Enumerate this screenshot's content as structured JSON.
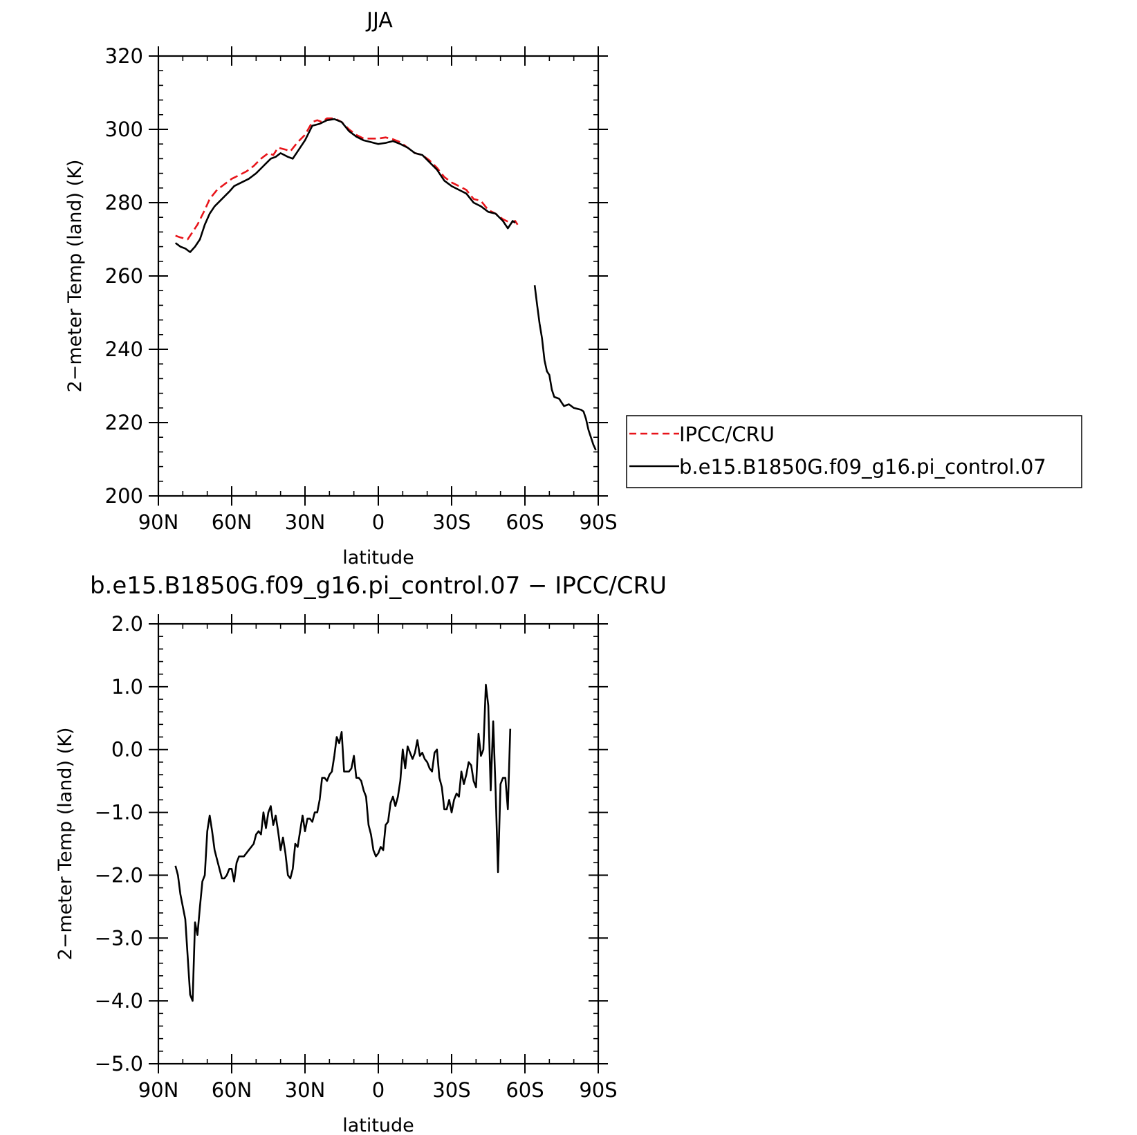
{
  "chart_data": [
    {
      "type": "line",
      "title": "JJA",
      "xlabel": "latitude",
      "ylabel": "2−meter Temp (land) (K)",
      "xlim": [
        90,
        -90
      ],
      "ylim": [
        200,
        320
      ],
      "x_ticks": [
        90,
        60,
        30,
        0,
        -30,
        -60,
        -90
      ],
      "x_tick_labels": [
        "90N",
        "60N",
        "30N",
        "0",
        "30S",
        "60S",
        "90S"
      ],
      "y_ticks": [
        200,
        220,
        240,
        260,
        280,
        300,
        320
      ],
      "y_tick_labels": [
        "200",
        "220",
        "240",
        "260",
        "280",
        "300",
        "320"
      ],
      "grid": false,
      "legend_position": "right",
      "series": [
        {
          "name": "IPCC/CRU",
          "color": "#e8141a",
          "dash": "dashed",
          "points": [
            [
              83,
              271
            ],
            [
              81,
              270.5
            ],
            [
              78,
              270
            ],
            [
              76,
              272
            ],
            [
              74,
              274
            ],
            [
              71,
              278
            ],
            [
              69,
              281
            ],
            [
              66,
              283.5
            ],
            [
              63,
              285
            ],
            [
              60,
              286.5
            ],
            [
              57,
              287.5
            ],
            [
              54,
              288.5
            ],
            [
              51,
              290
            ],
            [
              48,
              292
            ],
            [
              45,
              293.5
            ],
            [
              43,
              293
            ],
            [
              41,
              295
            ],
            [
              38,
              294.5
            ],
            [
              36,
              294
            ],
            [
              33,
              296.5
            ],
            [
              30,
              298.5
            ],
            [
              27,
              302
            ],
            [
              25,
              302.5
            ],
            [
              23,
              302
            ],
            [
              21,
              303
            ],
            [
              18,
              303
            ],
            [
              15,
              302
            ],
            [
              12,
              300
            ],
            [
              9,
              298.5
            ],
            [
              6,
              297.5
            ],
            [
              3,
              297.5
            ],
            [
              0,
              297.5
            ],
            [
              -3,
              297.8
            ],
            [
              -6,
              297.3
            ],
            [
              -9,
              296.5
            ],
            [
              -12,
              295
            ],
            [
              -15,
              293.5
            ],
            [
              -18,
              293
            ],
            [
              -21,
              291.5
            ],
            [
              -24,
              289.5
            ],
            [
              -27,
              287
            ],
            [
              -30,
              285.5
            ],
            [
              -33,
              284.5
            ],
            [
              -36,
              283.5
            ],
            [
              -39,
              281
            ],
            [
              -42,
              280.5
            ],
            [
              -45,
              278
            ],
            [
              -48,
              277
            ],
            [
              -51,
              275.5
            ],
            [
              -54,
              274.5
            ],
            [
              -56,
              275
            ],
            [
              -57,
              274
            ]
          ]
        },
        {
          "name": "b.e15.B1850G.f09_g16.pi_control.07",
          "color": "#000000",
          "dash": "solid",
          "points": [
            [
              83,
              269
            ],
            [
              81,
              268
            ],
            [
              79,
              267.5
            ],
            [
              77,
              266.5
            ],
            [
              75,
              268
            ],
            [
              73,
              270
            ],
            [
              71,
              274
            ],
            [
              69,
              277
            ],
            [
              67,
              279
            ],
            [
              64,
              281
            ],
            [
              61,
              283
            ],
            [
              59,
              284.5
            ],
            [
              56,
              285.5
            ],
            [
              53,
              286.5
            ],
            [
              50,
              288
            ],
            [
              47,
              290
            ],
            [
              44,
              292
            ],
            [
              42,
              292.5
            ],
            [
              40,
              293.5
            ],
            [
              37,
              292.5
            ],
            [
              35,
              292
            ],
            [
              33,
              294
            ],
            [
              30,
              297
            ],
            [
              27,
              301
            ],
            [
              24,
              301.5
            ],
            [
              21,
              302.5
            ],
            [
              18,
              302.8
            ],
            [
              15,
              302
            ],
            [
              12,
              299.5
            ],
            [
              9,
              298
            ],
            [
              6,
              297
            ],
            [
              3,
              296.5
            ],
            [
              0,
              296
            ],
            [
              -3,
              296.3
            ],
            [
              -6,
              296.8
            ],
            [
              -9,
              296
            ],
            [
              -12,
              295
            ],
            [
              -15,
              293.5
            ],
            [
              -18,
              293
            ],
            [
              -21,
              291
            ],
            [
              -24,
              289
            ],
            [
              -27,
              286
            ],
            [
              -30,
              284.5
            ],
            [
              -33,
              283.5
            ],
            [
              -36,
              282.5
            ],
            [
              -39,
              280
            ],
            [
              -42,
              279
            ],
            [
              -45,
              277.5
            ],
            [
              -48,
              277
            ],
            [
              -51,
              275
            ],
            [
              -53,
              273
            ],
            [
              -55,
              275
            ],
            [
              -56,
              274.5
            ]
          ]
        },
        {
          "name": "b.e15.B1850G.f09_g16.pi_control.07",
          "color": "#000000",
          "dash": "solid",
          "points": [
            [
              -64,
              257.5
            ],
            [
              -65,
              252
            ],
            [
              -66,
              247
            ],
            [
              -67,
              243
            ],
            [
              -68,
              237
            ],
            [
              -69,
              234
            ],
            [
              -70,
              233
            ],
            [
              -71,
              229
            ],
            [
              -72,
              227
            ],
            [
              -74,
              226.5
            ],
            [
              -75,
              225.5
            ],
            [
              -76,
              224.5
            ],
            [
              -78,
              225
            ],
            [
              -80,
              224
            ],
            [
              -83,
              223.5
            ],
            [
              -84,
              223
            ],
            [
              -85,
              221
            ],
            [
              -86,
              218
            ],
            [
              -88,
              214
            ],
            [
              -89,
              212.5
            ]
          ]
        }
      ]
    },
    {
      "type": "line",
      "title": "b.e15.B1850G.f09_g16.pi_control.07 − IPCC/CRU",
      "xlabel": "latitude",
      "ylabel": "2−meter Temp (land) (K)",
      "xlim": [
        90,
        -90
      ],
      "ylim": [
        -5,
        2
      ],
      "x_ticks": [
        90,
        60,
        30,
        0,
        -30,
        -60,
        -90
      ],
      "x_tick_labels": [
        "90N",
        "60N",
        "30N",
        "0",
        "30S",
        "60S",
        "90S"
      ],
      "y_ticks": [
        2,
        1,
        0,
        -1,
        -2,
        -3,
        -4,
        -5
      ],
      "y_tick_labels": [
        "2.0",
        "1.0",
        "0.0",
        "−1.0",
        "−2.0",
        "−3.0",
        "−4.0",
        "−5.0"
      ],
      "grid": false,
      "series": [
        {
          "color": "#000000",
          "dash": "solid",
          "points": [
            [
              83,
              -1.85
            ],
            [
              82,
              -2.0
            ],
            [
              81,
              -2.3
            ],
            [
              79,
              -2.7
            ],
            [
              78,
              -3.3
            ],
            [
              77,
              -3.9
            ],
            [
              76,
              -4.0
            ],
            [
              75,
              -2.75
            ],
            [
              74,
              -2.95
            ],
            [
              73,
              -2.5
            ],
            [
              72,
              -2.1
            ],
            [
              71,
              -2.0
            ],
            [
              70,
              -1.3
            ],
            [
              69,
              -1.05
            ],
            [
              68,
              -1.3
            ],
            [
              67,
              -1.6
            ],
            [
              66,
              -1.75
            ],
            [
              64,
              -2.05
            ],
            [
              63,
              -2.05
            ],
            [
              62,
              -2.0
            ],
            [
              61,
              -1.9
            ],
            [
              60,
              -1.9
            ],
            [
              59,
              -2.1
            ],
            [
              58,
              -1.8
            ],
            [
              57,
              -1.7
            ],
            [
              56,
              -1.7
            ],
            [
              55,
              -1.7
            ],
            [
              54,
              -1.65
            ],
            [
              53,
              -1.6
            ],
            [
              51,
              -1.5
            ],
            [
              50,
              -1.35
            ],
            [
              49,
              -1.3
            ],
            [
              48,
              -1.35
            ],
            [
              47,
              -1.0
            ],
            [
              46,
              -1.25
            ],
            [
              45,
              -1.0
            ],
            [
              44,
              -0.9
            ],
            [
              43,
              -1.2
            ],
            [
              42,
              -1.05
            ],
            [
              41,
              -1.3
            ],
            [
              40,
              -1.6
            ],
            [
              39,
              -1.4
            ],
            [
              38,
              -1.65
            ],
            [
              37,
              -2.0
            ],
            [
              36,
              -2.05
            ],
            [
              35,
              -1.9
            ],
            [
              34,
              -1.5
            ],
            [
              33,
              -1.55
            ],
            [
              32,
              -1.3
            ],
            [
              31,
              -1.05
            ],
            [
              30,
              -1.3
            ],
            [
              29,
              -1.1
            ],
            [
              28,
              -1.1
            ],
            [
              27,
              -1.15
            ],
            [
              26,
              -1.0
            ],
            [
              25,
              -1.0
            ],
            [
              24,
              -0.8
            ],
            [
              23,
              -0.45
            ],
            [
              22,
              -0.45
            ],
            [
              21,
              -0.5
            ],
            [
              20,
              -0.4
            ],
            [
              19,
              -0.35
            ],
            [
              18,
              -0.1
            ],
            [
              17,
              0.2
            ],
            [
              16,
              0.1
            ],
            [
              15,
              0.28
            ],
            [
              14,
              -0.35
            ],
            [
              13,
              -0.35
            ],
            [
              12,
              -0.35
            ],
            [
              11,
              -0.3
            ],
            [
              10,
              -0.1
            ],
            [
              9,
              -0.45
            ],
            [
              8,
              -0.45
            ],
            [
              7,
              -0.5
            ],
            [
              6,
              -0.65
            ],
            [
              5,
              -0.75
            ],
            [
              4,
              -1.2
            ],
            [
              3,
              -1.35
            ],
            [
              2,
              -1.6
            ],
            [
              1,
              -1.7
            ],
            [
              0,
              -1.65
            ],
            [
              -1,
              -1.55
            ],
            [
              -2,
              -1.6
            ],
            [
              -3,
              -1.2
            ],
            [
              -4,
              -1.15
            ],
            [
              -5,
              -0.85
            ],
            [
              -6,
              -0.75
            ],
            [
              -7,
              -0.9
            ],
            [
              -8,
              -0.75
            ],
            [
              -9,
              -0.5
            ],
            [
              -10,
              0.0
            ],
            [
              -11,
              -0.3
            ],
            [
              -12,
              0.05
            ],
            [
              -13,
              -0.05
            ],
            [
              -14,
              -0.15
            ],
            [
              -15,
              -0.05
            ],
            [
              -16,
              0.15
            ],
            [
              -17,
              -0.1
            ],
            [
              -18,
              -0.05
            ],
            [
              -19,
              -0.15
            ],
            [
              -20,
              -0.2
            ],
            [
              -21,
              -0.3
            ],
            [
              -22,
              -0.35
            ],
            [
              -23,
              -0.05
            ],
            [
              -24,
              0.0
            ],
            [
              -25,
              -0.45
            ],
            [
              -26,
              -0.6
            ],
            [
              -27,
              -0.95
            ],
            [
              -28,
              -0.95
            ],
            [
              -29,
              -0.8
            ],
            [
              -30,
              -1.0
            ],
            [
              -31,
              -0.8
            ],
            [
              -32,
              -0.7
            ],
            [
              -33,
              -0.75
            ],
            [
              -34,
              -0.35
            ],
            [
              -35,
              -0.55
            ],
            [
              -36,
              -0.4
            ],
            [
              -37,
              -0.2
            ],
            [
              -38,
              -0.25
            ],
            [
              -39,
              -0.5
            ],
            [
              -40,
              -0.6
            ],
            [
              -41,
              0.25
            ],
            [
              -42,
              -0.1
            ],
            [
              -43,
              0.0
            ],
            [
              -44,
              1.03
            ],
            [
              -45,
              0.7
            ],
            [
              -46,
              -0.65
            ],
            [
              -47,
              0.45
            ],
            [
              -48,
              -0.65
            ],
            [
              -49,
              -1.95
            ],
            [
              -50,
              -0.55
            ],
            [
              -51,
              -0.45
            ],
            [
              -52,
              -0.45
            ],
            [
              -53,
              -0.95
            ],
            [
              -54,
              0.33
            ]
          ]
        }
      ]
    }
  ]
}
